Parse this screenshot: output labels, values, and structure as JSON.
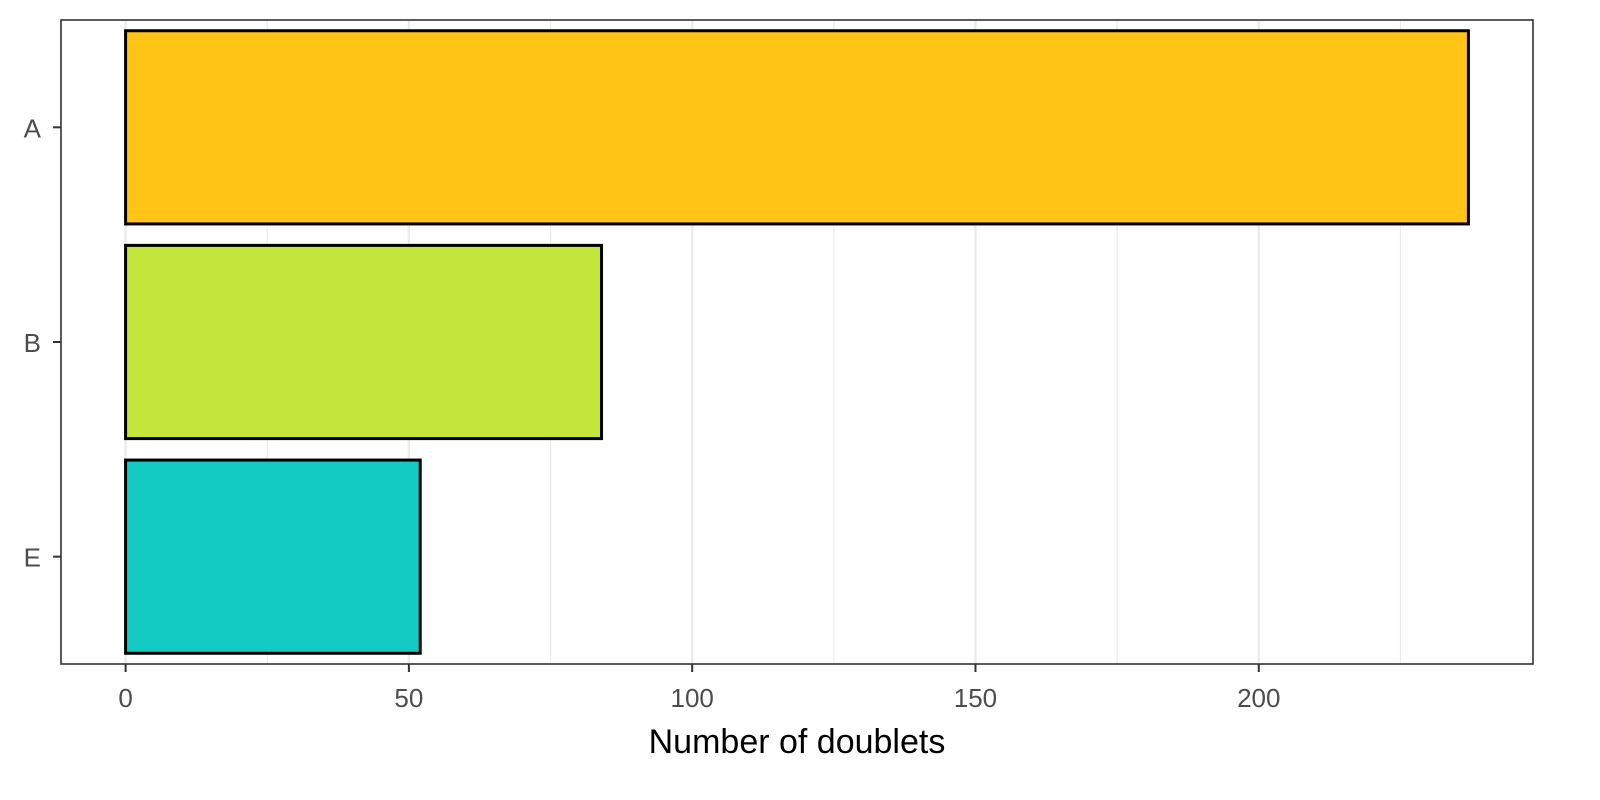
{
  "chart_data": {
    "type": "bar",
    "orientation": "horizontal",
    "categories": [
      "A",
      "B",
      "E"
    ],
    "values": [
      237,
      84,
      52
    ],
    "colors": [
      "#ffc416",
      "#c4e53a",
      "#14cbc4"
    ],
    "title": "",
    "xlabel": "Number of doublets",
    "ylabel": "",
    "xlim": [
      -11.4,
      248.4
    ],
    "xticks": [
      0,
      50,
      100,
      150,
      200
    ],
    "xtick_labels": [
      "0",
      "50",
      "100",
      "150",
      "200"
    ],
    "minor_gridlines": [
      25,
      75,
      125,
      175,
      225
    ],
    "grid": true,
    "legend": "none",
    "bar_outline_color": "#000000",
    "panel_border_color": "#333333",
    "grid_color": "#ebebeb"
  }
}
